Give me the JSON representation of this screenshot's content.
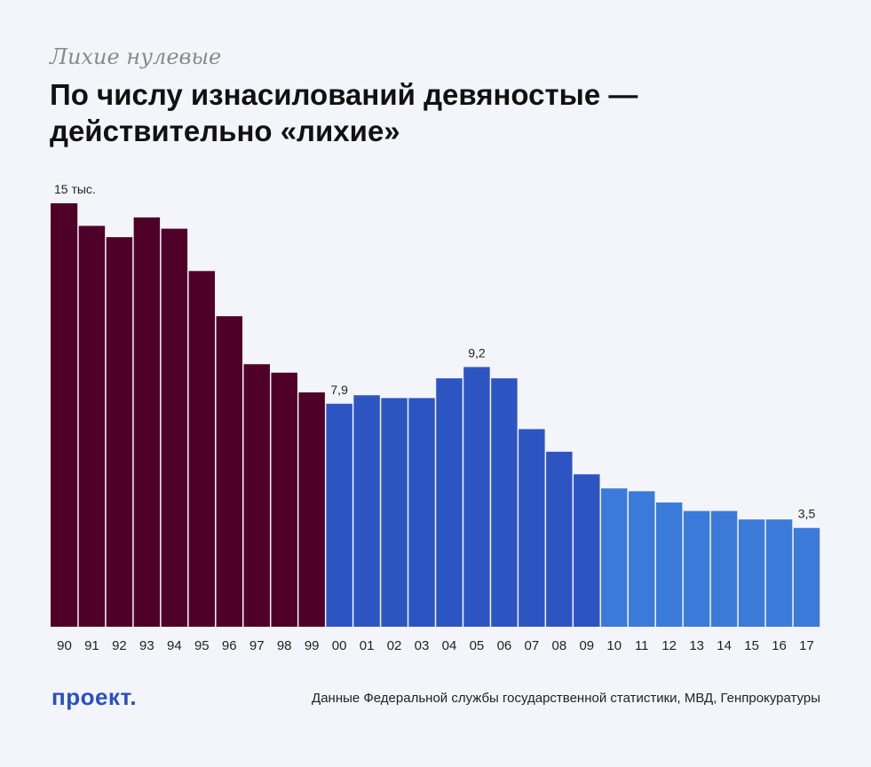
{
  "header": {
    "kicker": "Лихие нулевые",
    "title": "По числу изнасилований девяностые — действительно «лихие»"
  },
  "footer": {
    "logo": "проект.",
    "source": "Данные Федеральной службы государственной статистики, МВД, Генпрокуратуры"
  },
  "colors": {
    "nineties": "#4f0028",
    "early_2000s": "#2d55c2",
    "late_2000s": "#3b7ad9"
  },
  "chart_data": {
    "type": "bar",
    "categories": [
      "90",
      "91",
      "92",
      "93",
      "94",
      "95",
      "96",
      "97",
      "98",
      "99",
      "00",
      "01",
      "02",
      "03",
      "04",
      "05",
      "06",
      "07",
      "08",
      "09",
      "10",
      "11",
      "12",
      "13",
      "14",
      "15",
      "16",
      "17"
    ],
    "values": [
      15.0,
      14.2,
      13.8,
      14.5,
      14.1,
      12.6,
      11.0,
      9.3,
      9.0,
      8.3,
      7.9,
      8.2,
      8.1,
      8.1,
      8.8,
      9.2,
      8.8,
      7.0,
      6.2,
      5.4,
      4.9,
      4.8,
      4.4,
      4.1,
      4.1,
      3.8,
      3.8,
      3.5
    ],
    "value_labels": [
      {
        "index": 0,
        "text": "15 тыс."
      },
      {
        "index": 10,
        "text": "7,9"
      },
      {
        "index": 15,
        "text": "9,2"
      },
      {
        "index": 27,
        "text": "3,5"
      }
    ],
    "color_groups": [
      {
        "from": 0,
        "to": 9,
        "color": "#4f0028"
      },
      {
        "from": 10,
        "to": 19,
        "color": "#2d55c2"
      },
      {
        "from": 20,
        "to": 27,
        "color": "#3b7ad9"
      }
    ],
    "ylim": [
      0,
      15
    ],
    "grid": false,
    "legend": "none"
  }
}
